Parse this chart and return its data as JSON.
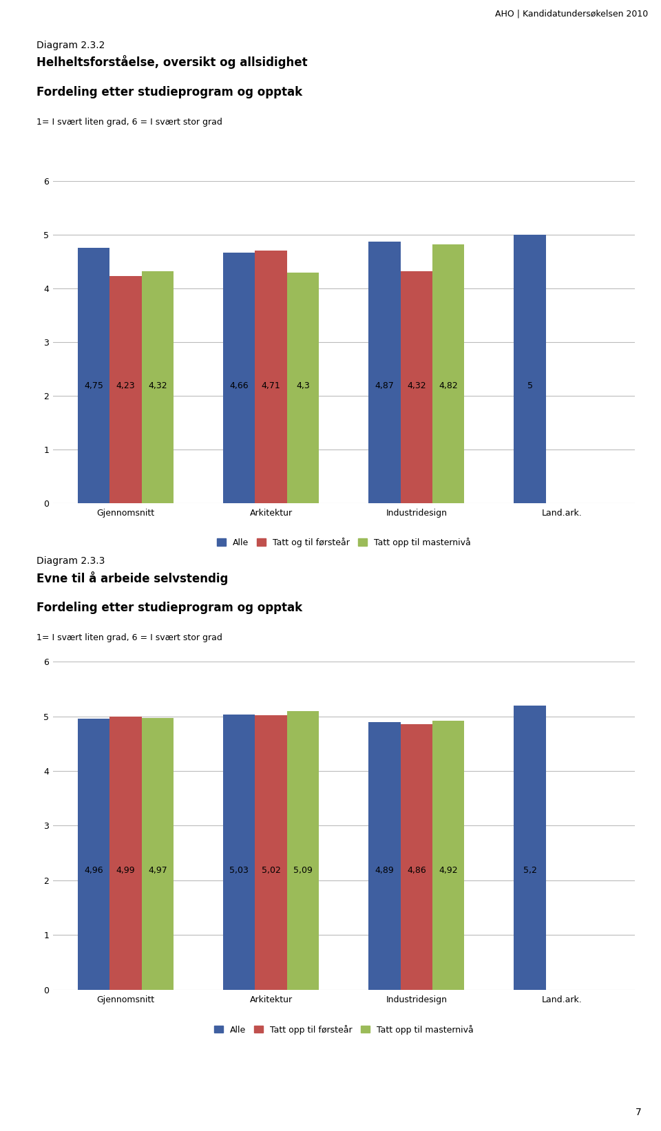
{
  "header": "AHO | Kandidatundersøkelsen 2010",
  "chart1": {
    "diagram_label": "Diagram 2.3.2",
    "title": "Helheltsforståelse, oversikt og allsidighet",
    "subtitle": "Fordeling etter studieprogram og opptak",
    "scale_label": "1= I svært liten grad, 6 = I svært stor grad",
    "categories": [
      "Gjennomsnitt",
      "Arkitektur",
      "Industridesign",
      "Land.ark."
    ],
    "series": {
      "Alle": [
        4.75,
        4.66,
        4.87,
        5.0
      ],
      "Tatt og til førsteår": [
        4.23,
        4.71,
        4.32,
        null
      ],
      "Tatt opp til masternivå": [
        4.32,
        4.3,
        4.82,
        null
      ]
    },
    "bar_colors": [
      "#3F5FA0",
      "#C0504D",
      "#9BBB59"
    ],
    "ylim": [
      0,
      6
    ],
    "yticks": [
      0,
      1,
      2,
      3,
      4,
      5,
      6
    ],
    "legend_labels": [
      "Alle",
      "Tatt og til førsteår",
      "Tatt opp til masternivå"
    ]
  },
  "chart2": {
    "diagram_label": "Diagram 2.3.3",
    "title": "Evne til å arbeide selvstendig",
    "subtitle": "Fordeling etter studieprogram og opptak",
    "scale_label": "1= I svært liten grad, 6 = I svært stor grad",
    "categories": [
      "Gjennomsnitt",
      "Arkitektur",
      "Industridesign",
      "Land.ark."
    ],
    "series": {
      "Alle": [
        4.96,
        5.03,
        4.89,
        5.2
      ],
      "Tatt opp til førsteår": [
        4.99,
        5.02,
        4.86,
        null
      ],
      "Tatt opp til masternivå": [
        4.97,
        5.09,
        4.92,
        null
      ]
    },
    "bar_colors": [
      "#3F5FA0",
      "#C0504D",
      "#9BBB59"
    ],
    "ylim": [
      0,
      6
    ],
    "yticks": [
      0,
      1,
      2,
      3,
      4,
      5,
      6
    ],
    "legend_labels": [
      "Alle",
      "Tatt opp til førsteår",
      "Tatt opp til masternivå"
    ]
  },
  "bg_color": "#FFFFFF",
  "text_color": "#000000",
  "font_size_diagram": 10,
  "font_size_title_bold": 12,
  "font_size_subtitle": 12,
  "font_size_scale": 9,
  "font_size_label": 9,
  "font_size_value": 9,
  "font_size_header": 9,
  "font_size_page": 10,
  "bar_width": 0.22
}
